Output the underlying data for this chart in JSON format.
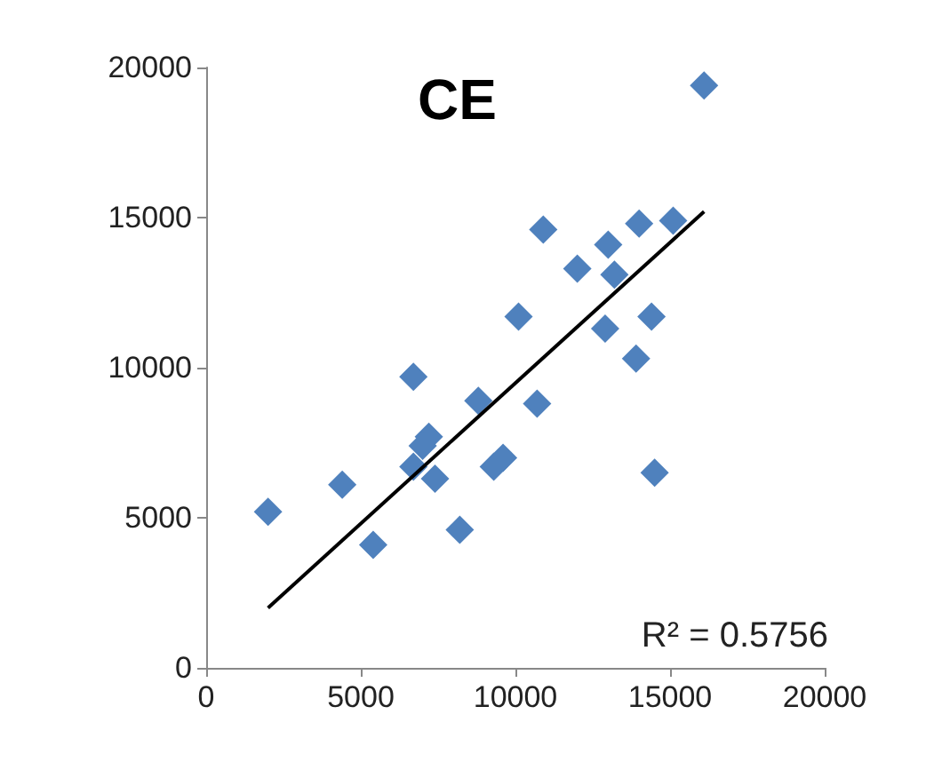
{
  "chart_data": {
    "type": "scatter",
    "title": "CE",
    "marker": "diamond",
    "grid": false,
    "xlim": [
      0,
      20000
    ],
    "xticks": [
      0,
      5000,
      10000,
      15000,
      20000
    ],
    "ylim": [
      0,
      20000
    ],
    "yticks": [
      0,
      5000,
      10000,
      15000,
      20000
    ],
    "annotations": [
      "R² = 0.5756"
    ],
    "series": [
      {
        "color": "#4f81bd",
        "x": [
          2000,
          4400,
          5400,
          6700,
          8800,
          10700,
          7200,
          7000,
          6700,
          7400,
          9600,
          9300,
          8200,
          16100,
          10900,
          14000,
          15100,
          13000,
          12000,
          13200,
          14400,
          12900,
          13900,
          10100,
          14500
        ],
        "values": [
          5200,
          6100,
          4100,
          9700,
          8900,
          8800,
          7700,
          7400,
          6700,
          6300,
          7000,
          6700,
          4600,
          19400,
          14600,
          14800,
          14900,
          14100,
          13300,
          13100,
          11700,
          11300,
          10300,
          11700,
          6500
        ]
      },
      {
        "type": "line",
        "marker": "none",
        "color": "#000000",
        "x": [
          2000,
          16100
        ],
        "values": [
          2000,
          15200
        ]
      }
    ]
  }
}
